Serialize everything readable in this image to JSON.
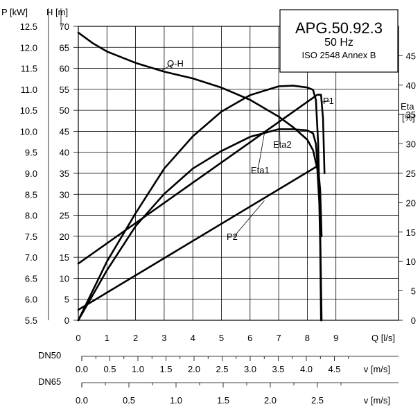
{
  "info": {
    "model": "APG.50.92.3",
    "frequency": "50 Hz",
    "standard": "ISO 2548 Annex B"
  },
  "chart_data": {
    "type": "line",
    "grid": true,
    "axes": {
      "x": {
        "label": "Q [l/s]",
        "ticks": [
          "0",
          "1",
          "2",
          "3",
          "4",
          "5",
          "6",
          "7",
          "8",
          "9"
        ],
        "range": [
          0,
          10
        ]
      },
      "y_head": {
        "label": "H [m]",
        "ticks": [
          "0",
          "5",
          "10",
          "15",
          "20",
          "25",
          "30",
          "35",
          "40",
          "45",
          "50",
          "55",
          "60",
          "65",
          "70"
        ],
        "range": [
          0,
          70
        ]
      },
      "y_power": {
        "label": "P [kW]",
        "ticks": [
          "5.5",
          "6.0",
          "6.5",
          "7.0",
          "7.5",
          "8.0",
          "8.5",
          "9.0",
          "9.5",
          "10.0",
          "10.5",
          "11.0",
          "11.5",
          "12.0",
          "12.5"
        ],
        "range": [
          5.5,
          12.5
        ]
      },
      "y_eta": {
        "label_line1": "Eta",
        "label_line2": "[%]",
        "ticks": [
          "0",
          "5",
          "10",
          "15",
          "20",
          "25",
          "30",
          "35",
          "40",
          "45"
        ],
        "range": [
          0,
          50
        ]
      }
    },
    "velocity_scales": [
      {
        "label": "DN50",
        "unit": "v [m/s]",
        "ticks": [
          "0.0",
          "0.5",
          "1.0",
          "1.5",
          "2.0",
          "2.5",
          "3.0",
          "3.5",
          "4.0",
          "4.5"
        ]
      },
      {
        "label": "DN65",
        "unit": "v [m/s]",
        "ticks": [
          "0.0",
          "0.5",
          "1.0",
          "1.5",
          "2.0",
          "2.5"
        ]
      }
    ],
    "series": [
      {
        "name": "Q-H",
        "axis": "y_head",
        "x": [
          0,
          0.5,
          1,
          2,
          3,
          4,
          5,
          6,
          7,
          7.5,
          8,
          8.2,
          8.35,
          8.42,
          8.45,
          8.48
        ],
        "y": [
          68.5,
          66,
          64,
          61.3,
          59.2,
          57.6,
          55.4,
          52.5,
          48.5,
          46,
          43,
          40.5,
          36,
          28,
          18,
          0
        ]
      },
      {
        "name": "P1",
        "axis": "y_power",
        "x": [
          0,
          8.35,
          8.48,
          8.55,
          8.6
        ],
        "y": [
          6.85,
          10.87,
          10.87,
          10.3,
          9.0
        ]
      },
      {
        "name": "P2",
        "axis": "y_power",
        "x": [
          0,
          8.3,
          8.38,
          8.45,
          8.5
        ],
        "y": [
          5.75,
          9.15,
          9.13,
          8.6,
          7.5
        ]
      },
      {
        "name": "Eta1",
        "axis": "y_eta",
        "x": [
          0,
          1,
          2,
          3,
          4,
          5,
          6,
          7,
          7.5,
          8,
          8.2,
          8.3,
          8.38,
          8.45
        ],
        "y": [
          0,
          8.5,
          16,
          21.5,
          25.8,
          28.8,
          31.2,
          32.5,
          32.5,
          32.3,
          31.8,
          30,
          25,
          19.5
        ]
      },
      {
        "name": "Eta2",
        "axis": "y_eta",
        "x": [
          0,
          1,
          2,
          3,
          4,
          5,
          6,
          7,
          7.5,
          8,
          8.2,
          8.3,
          8.38,
          8.45,
          8.5
        ],
        "y": [
          0,
          10,
          18.2,
          25.8,
          31.3,
          35.5,
          38.3,
          39.8,
          39.9,
          39.6,
          39.2,
          37.5,
          30,
          15,
          0
        ]
      }
    ]
  }
}
